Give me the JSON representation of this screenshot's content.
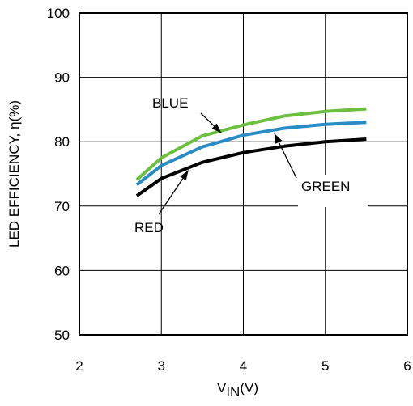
{
  "chart_data": {
    "type": "line",
    "title": "",
    "xlabel_main": "V",
    "xlabel_sub": "IN",
    "xlabel_unit": "(V)",
    "ylabel": "LED EFFICIENCY, η(%)",
    "xlim": [
      2,
      6
    ],
    "ylim": [
      50,
      100
    ],
    "xticks": [
      "2",
      "3",
      "4",
      "5",
      "6"
    ],
    "yticks": [
      "50",
      "60",
      "70",
      "80",
      "90",
      "100"
    ],
    "grid": true,
    "series": [
      {
        "name": "BLUE",
        "color": "#6cbf3f",
        "x": [
          2.7,
          3.0,
          3.5,
          4.0,
          4.5,
          5.0,
          5.5
        ],
        "y": [
          74.1,
          77.5,
          80.9,
          82.6,
          84.0,
          84.7,
          85.1
        ]
      },
      {
        "name": "GREEN",
        "color": "#2a8cc4",
        "x": [
          2.7,
          3.0,
          3.5,
          4.0,
          4.5,
          5.0,
          5.5
        ],
        "y": [
          73.3,
          76.3,
          79.2,
          81.0,
          82.1,
          82.7,
          83.0
        ]
      },
      {
        "name": "RED",
        "color": "#000000",
        "x": [
          2.7,
          3.0,
          3.5,
          4.0,
          4.5,
          5.0,
          5.5
        ],
        "y": [
          71.6,
          74.3,
          76.8,
          78.3,
          79.3,
          80.0,
          80.4
        ]
      }
    ],
    "annotations": [
      {
        "text": "BLUE",
        "series": "BLUE"
      },
      {
        "text": "GREEN",
        "series": "GREEN"
      },
      {
        "text": "RED",
        "series": "RED"
      }
    ]
  }
}
